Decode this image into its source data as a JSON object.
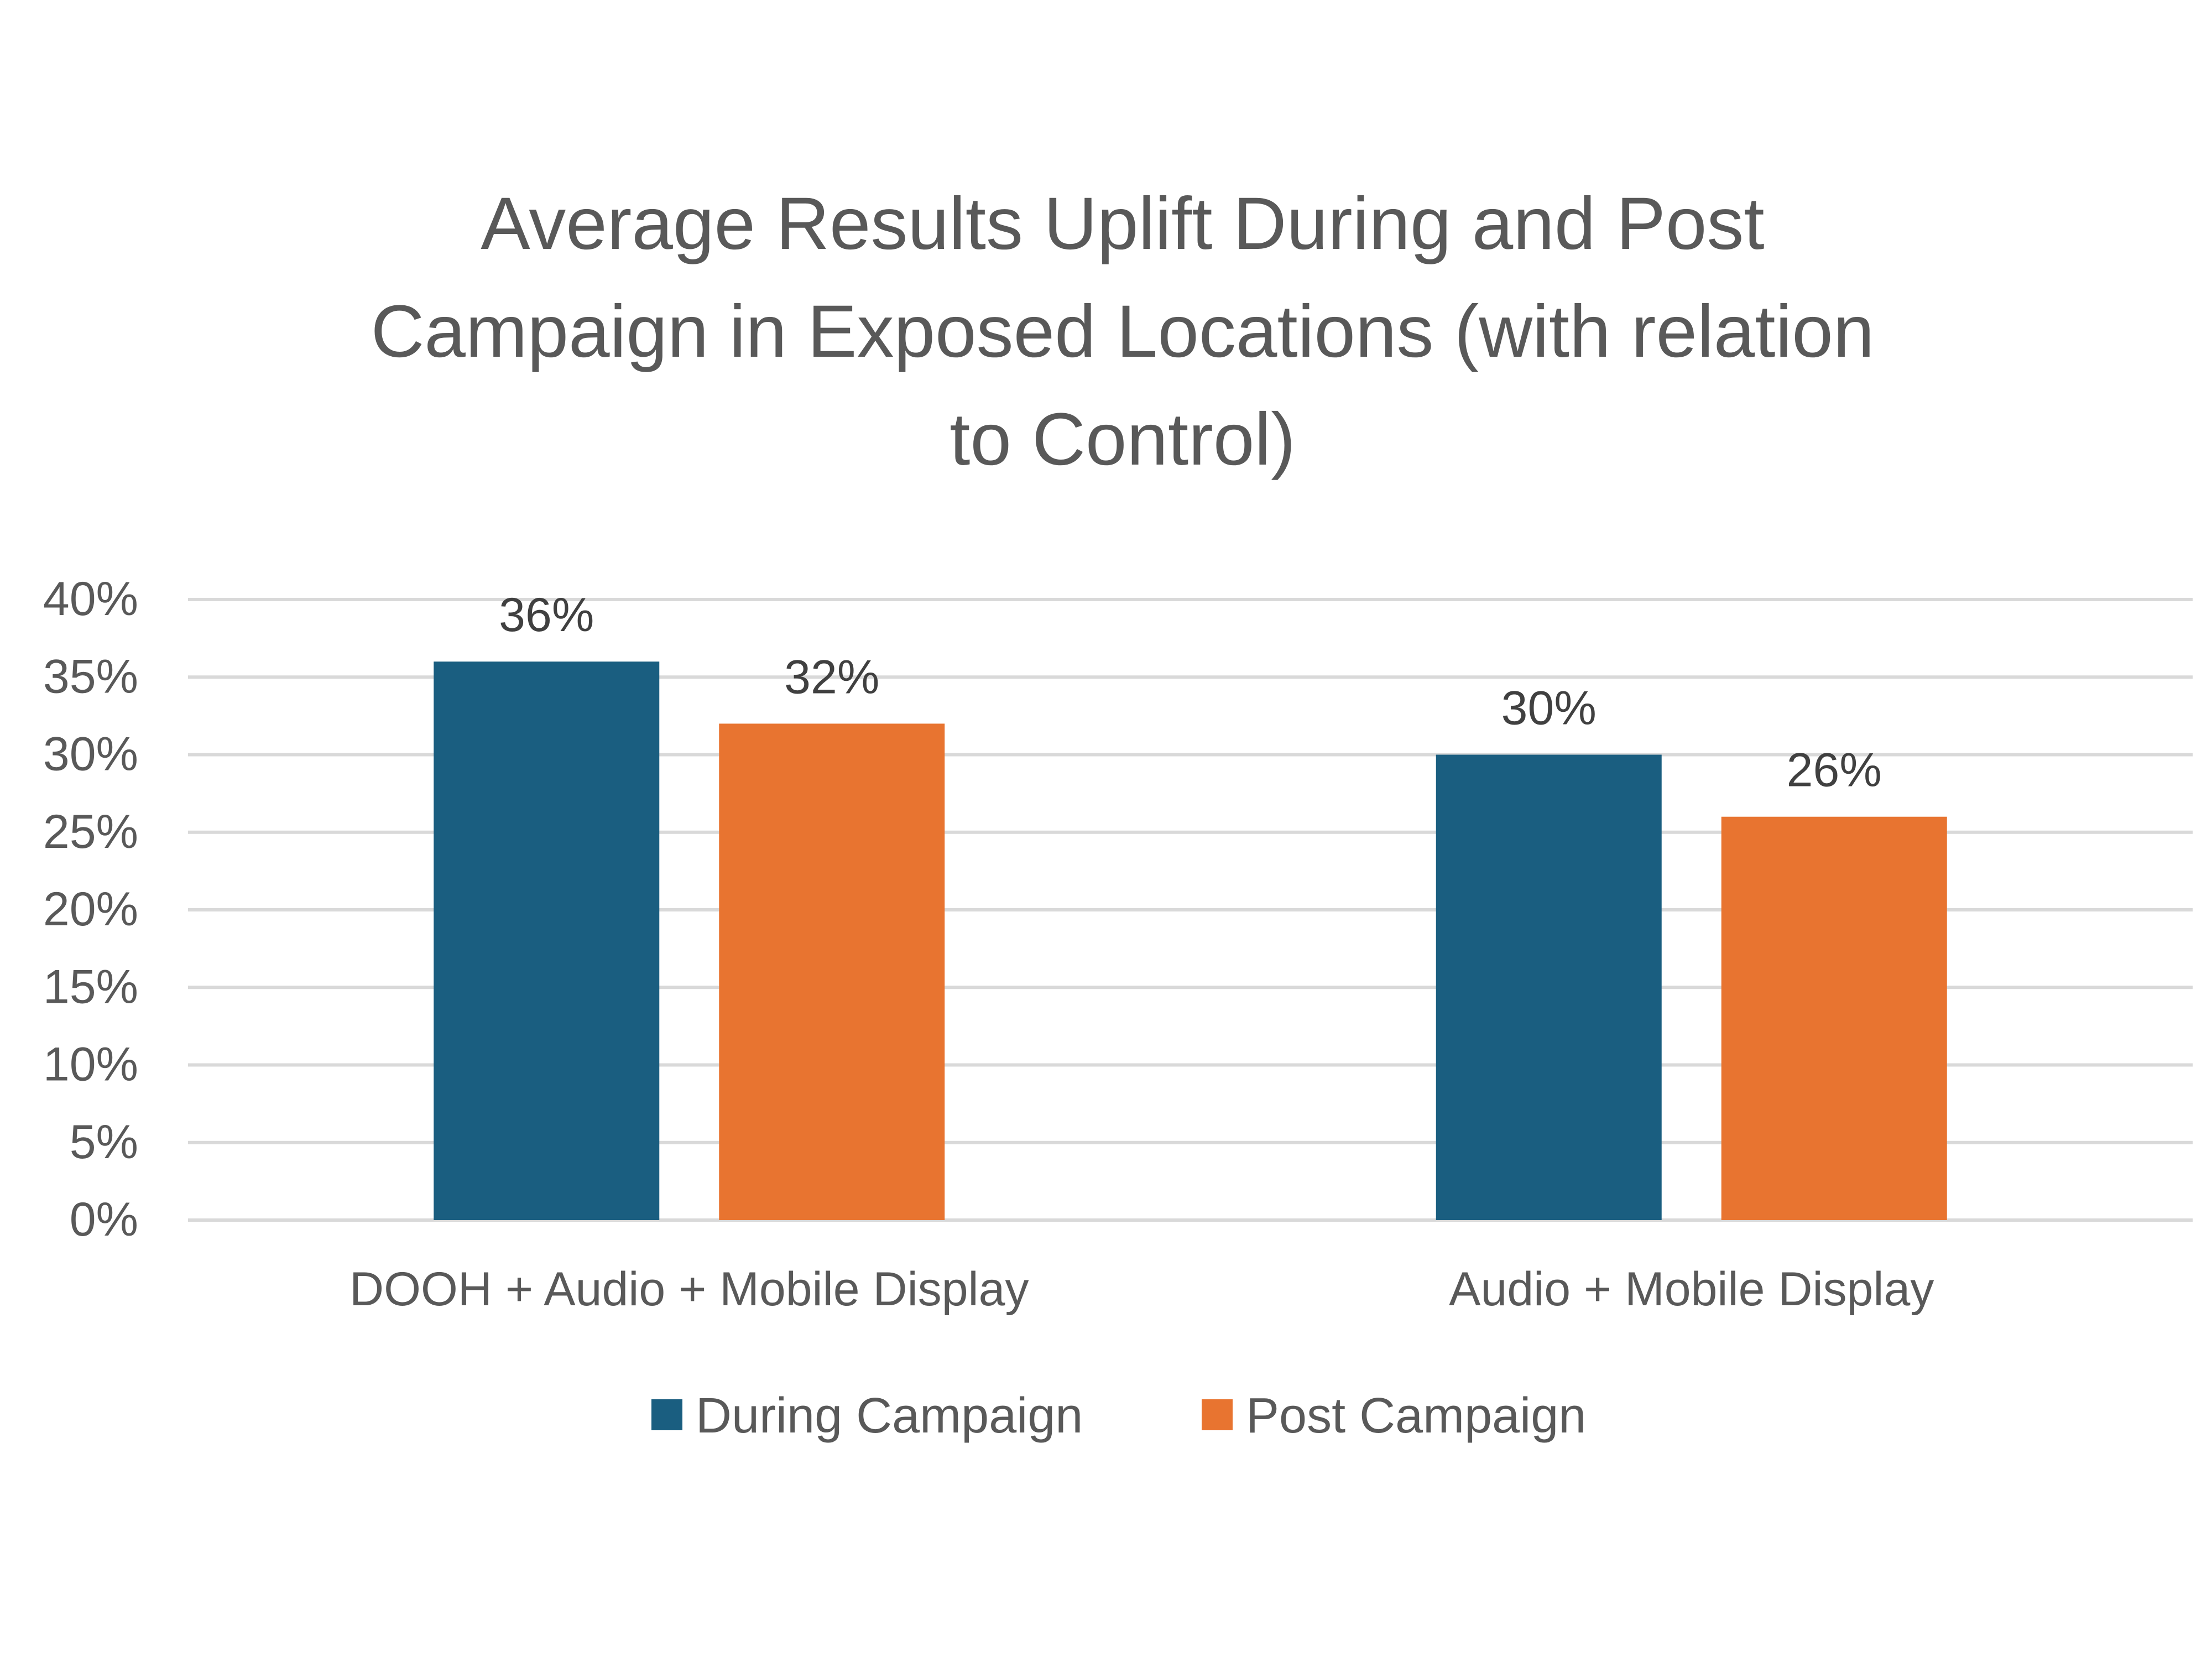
{
  "chart_data": {
    "type": "bar",
    "title_lines": [
      "Average Results Uplift During and Post",
      "Campaign in Exposed Locations (with relation",
      "to Control)"
    ],
    "categories": [
      "DOOH + Audio + Mobile Display",
      "Audio + Mobile Display"
    ],
    "series": [
      {
        "name": "During Campaign",
        "values": [
          36,
          30
        ],
        "color": "#1a5e80"
      },
      {
        "name": "Post Campaign",
        "values": [
          32,
          26
        ],
        "color": "#e87430"
      }
    ],
    "data_labels": [
      [
        "36%",
        "30%"
      ],
      [
        "32%",
        "26%"
      ]
    ],
    "y_ticks": [
      0,
      5,
      10,
      15,
      20,
      25,
      30,
      35,
      40
    ],
    "y_tick_labels": [
      "0%",
      "5%",
      "10%",
      "15%",
      "20%",
      "25%",
      "30%",
      "35%",
      "40%"
    ],
    "ylim": [
      0,
      40
    ],
    "grid": true,
    "legend_position": "bottom-center",
    "text_color": "#595959",
    "grid_color": "#d9d9d9"
  }
}
